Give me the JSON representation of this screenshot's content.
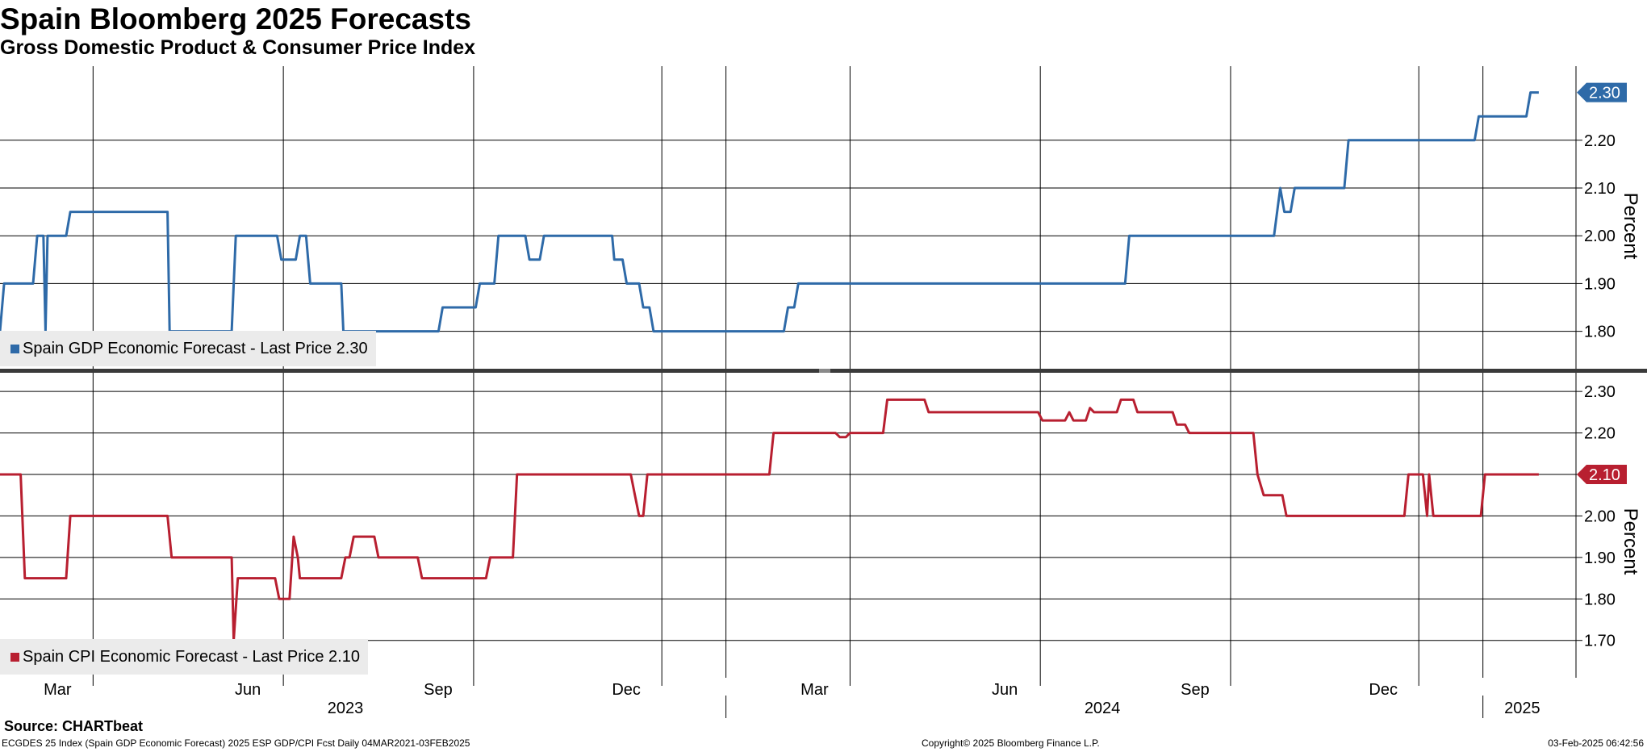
{
  "title": "Spain Bloomberg 2025 Forecasts",
  "subtitle": "Gross Domestic Product & Consumer Price Index",
  "source": "Source: CHARTbeat",
  "footer": {
    "left": "ECGDES 25 Index (Spain GDP Economic Forecast) 2025 ESP GDP/CPI Fcst  Daily 04MAR2021-03FEB2025",
    "center": "Copyright© 2025 Bloomberg Finance L.P.",
    "right": "03-Feb-2025 06:42:56"
  },
  "x_axis": {
    "month_labels": [
      {
        "label": "Mar",
        "date": "2023-03-01"
      },
      {
        "label": "Jun",
        "date": "2023-06-01"
      },
      {
        "label": "Sep",
        "date": "2023-09-01"
      },
      {
        "label": "Dec",
        "date": "2023-12-01"
      },
      {
        "label": "Mar",
        "date": "2024-03-01"
      },
      {
        "label": "Jun",
        "date": "2024-06-01"
      },
      {
        "label": "Sep",
        "date": "2024-09-01"
      },
      {
        "label": "Dec",
        "date": "2024-12-01"
      }
    ],
    "year_labels": [
      {
        "label": "2023",
        "date": "2023-07-01"
      },
      {
        "label": "2024",
        "date": "2024-07-01"
      },
      {
        "label": "2025",
        "date": "2025-01-20"
      }
    ],
    "year_separators": [
      "2024-01-01",
      "2025-01-01"
    ]
  },
  "chart_data": [
    {
      "type": "line",
      "ylabel": "Percent",
      "ylim": [
        1.72,
        2.355
      ],
      "yticks": [
        "1.80",
        "1.90",
        "2.00",
        "2.10",
        "2.20"
      ],
      "xlim": [
        "2023-01-15",
        "2025-02-15"
      ],
      "grid": true,
      "legend_position": "bottom-left",
      "last_value_label": "2.30",
      "series": [
        {
          "legend": "Spain GDP Economic Forecast - Last Price 2.30",
          "color": "#2e6aa8",
          "points": [
            [
              "2023-01-15",
              1.8
            ],
            [
              "2023-01-17",
              1.9
            ],
            [
              "2023-01-31",
              1.9
            ],
            [
              "2023-02-02",
              2.0
            ],
            [
              "2023-02-05",
              2.0
            ],
            [
              "2023-02-06",
              1.8
            ],
            [
              "2023-02-07",
              2.0
            ],
            [
              "2023-02-16",
              2.0
            ],
            [
              "2023-02-18",
              2.05
            ],
            [
              "2023-04-06",
              2.05
            ],
            [
              "2023-04-07",
              1.8
            ],
            [
              "2023-05-07",
              1.8
            ],
            [
              "2023-05-09",
              2.0
            ],
            [
              "2023-05-29",
              2.0
            ],
            [
              "2023-05-31",
              1.95
            ],
            [
              "2023-06-07",
              1.95
            ],
            [
              "2023-06-09",
              2.0
            ],
            [
              "2023-06-12",
              2.0
            ],
            [
              "2023-06-14",
              1.9
            ],
            [
              "2023-06-29",
              1.9
            ],
            [
              "2023-06-30",
              1.8
            ],
            [
              "2023-08-15",
              1.8
            ],
            [
              "2023-08-17",
              1.85
            ],
            [
              "2023-09-02",
              1.85
            ],
            [
              "2023-09-04",
              1.9
            ],
            [
              "2023-09-11",
              1.9
            ],
            [
              "2023-09-13",
              2.0
            ],
            [
              "2023-09-26",
              2.0
            ],
            [
              "2023-09-28",
              1.95
            ],
            [
              "2023-10-03",
              1.95
            ],
            [
              "2023-10-05",
              2.0
            ],
            [
              "2023-11-07",
              2.0
            ],
            [
              "2023-11-08",
              1.95
            ],
            [
              "2023-11-12",
              1.95
            ],
            [
              "2023-11-14",
              1.9
            ],
            [
              "2023-11-20",
              1.9
            ],
            [
              "2023-11-22",
              1.85
            ],
            [
              "2023-11-25",
              1.85
            ],
            [
              "2023-11-27",
              1.8
            ],
            [
              "2024-01-29",
              1.8
            ],
            [
              "2024-01-31",
              1.85
            ],
            [
              "2024-02-03",
              1.85
            ],
            [
              "2024-02-05",
              1.9
            ],
            [
              "2024-07-12",
              1.9
            ],
            [
              "2024-07-14",
              2.0
            ],
            [
              "2024-09-22",
              2.0
            ],
            [
              "2024-09-25",
              2.1
            ],
            [
              "2024-09-27",
              2.05
            ],
            [
              "2024-09-30",
              2.05
            ],
            [
              "2024-10-02",
              2.1
            ],
            [
              "2024-10-26",
              2.1
            ],
            [
              "2024-10-28",
              2.2
            ],
            [
              "2024-12-28",
              2.2
            ],
            [
              "2024-12-30",
              2.25
            ],
            [
              "2025-01-22",
              2.25
            ],
            [
              "2025-01-24",
              2.3
            ],
            [
              "2025-01-28",
              2.3
            ]
          ]
        }
      ]
    },
    {
      "type": "line",
      "ylabel": "Percent",
      "ylim": [
        1.61,
        2.345
      ],
      "yticks": [
        "1.70",
        "1.80",
        "1.90",
        "2.00",
        "2.10",
        "2.20",
        "2.30"
      ],
      "xlim": [
        "2023-01-15",
        "2025-02-15"
      ],
      "grid": true,
      "legend_position": "bottom-left",
      "last_value_label": "2.10",
      "series": [
        {
          "legend": "Spain CPI Economic Forecast - Last Price 2.10",
          "color": "#b81f30",
          "points": [
            [
              "2023-01-15",
              2.1
            ],
            [
              "2023-01-25",
              2.1
            ],
            [
              "2023-01-27",
              1.85
            ],
            [
              "2023-02-16",
              1.85
            ],
            [
              "2023-02-18",
              2.0
            ],
            [
              "2023-04-06",
              2.0
            ],
            [
              "2023-04-08",
              1.9
            ],
            [
              "2023-05-07",
              1.9
            ],
            [
              "2023-05-08",
              1.7
            ],
            [
              "2023-05-10",
              1.85
            ],
            [
              "2023-05-28",
              1.85
            ],
            [
              "2023-05-30",
              1.8
            ],
            [
              "2023-06-04",
              1.8
            ],
            [
              "2023-06-06",
              1.95
            ],
            [
              "2023-06-08",
              1.9
            ],
            [
              "2023-06-09",
              1.85
            ],
            [
              "2023-06-29",
              1.85
            ],
            [
              "2023-07-01",
              1.9
            ],
            [
              "2023-07-03",
              1.9
            ],
            [
              "2023-07-05",
              1.95
            ],
            [
              "2023-07-15",
              1.95
            ],
            [
              "2023-07-17",
              1.9
            ],
            [
              "2023-08-05",
              1.9
            ],
            [
              "2023-08-07",
              1.85
            ],
            [
              "2023-09-07",
              1.85
            ],
            [
              "2023-09-09",
              1.9
            ],
            [
              "2023-09-20",
              1.9
            ],
            [
              "2023-09-22",
              2.1
            ],
            [
              "2023-11-16",
              2.1
            ],
            [
              "2023-11-18",
              2.05
            ],
            [
              "2023-11-20",
              2.0
            ],
            [
              "2023-11-22",
              2.0
            ],
            [
              "2023-11-24",
              2.1
            ],
            [
              "2024-01-22",
              2.1
            ],
            [
              "2024-01-24",
              2.2
            ],
            [
              "2024-02-23",
              2.2
            ],
            [
              "2024-02-25",
              2.19
            ],
            [
              "2024-02-28",
              2.19
            ],
            [
              "2024-03-01",
              2.2
            ],
            [
              "2024-03-17",
              2.2
            ],
            [
              "2024-03-19",
              2.28
            ],
            [
              "2024-04-06",
              2.28
            ],
            [
              "2024-04-08",
              2.25
            ],
            [
              "2024-05-31",
              2.25
            ],
            [
              "2024-06-02",
              2.23
            ],
            [
              "2024-06-13",
              2.23
            ],
            [
              "2024-06-15",
              2.25
            ],
            [
              "2024-06-17",
              2.23
            ],
            [
              "2024-06-23",
              2.23
            ],
            [
              "2024-06-25",
              2.26
            ],
            [
              "2024-06-27",
              2.25
            ],
            [
              "2024-07-08",
              2.25
            ],
            [
              "2024-07-10",
              2.28
            ],
            [
              "2024-07-16",
              2.28
            ],
            [
              "2024-07-18",
              2.25
            ],
            [
              "2024-08-04",
              2.25
            ],
            [
              "2024-08-06",
              2.22
            ],
            [
              "2024-08-10",
              2.22
            ],
            [
              "2024-08-12",
              2.2
            ],
            [
              "2024-09-12",
              2.2
            ],
            [
              "2024-09-14",
              2.1
            ],
            [
              "2024-09-17",
              2.05
            ],
            [
              "2024-09-26",
              2.05
            ],
            [
              "2024-09-28",
              2.0
            ],
            [
              "2024-11-24",
              2.0
            ],
            [
              "2024-11-26",
              2.1
            ],
            [
              "2024-12-03",
              2.1
            ],
            [
              "2024-12-05",
              2.0
            ],
            [
              "2024-12-06",
              2.1
            ],
            [
              "2024-12-08",
              2.0
            ],
            [
              "2024-12-31",
              2.0
            ],
            [
              "2025-01-02",
              2.1
            ],
            [
              "2025-01-28",
              2.1
            ]
          ]
        }
      ]
    }
  ]
}
